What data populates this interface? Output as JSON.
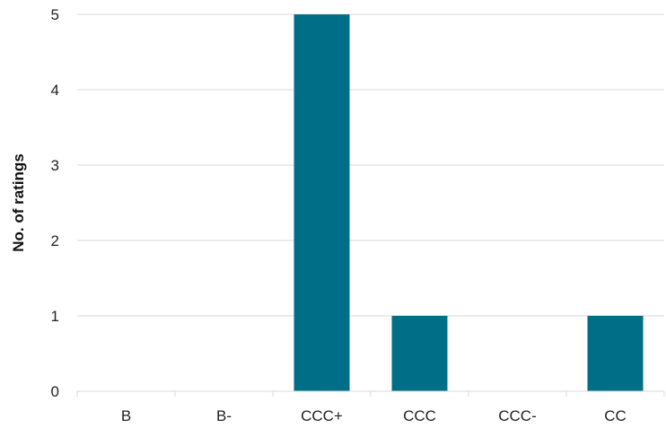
{
  "chart_data": {
    "type": "bar",
    "categories": [
      "B",
      "B-",
      "CCC+",
      "CCC",
      "CCC-",
      "CC"
    ],
    "values": [
      0,
      0,
      5,
      1,
      0,
      1
    ],
    "xlabel": "",
    "ylabel": "No. of ratings",
    "ylim": [
      0,
      5
    ],
    "yticks": [
      0,
      1,
      2,
      3,
      4,
      5
    ],
    "grid": "horizontal",
    "legend": "none",
    "bar_color": "#006e87",
    "grid_color": "#d9d9d9"
  }
}
